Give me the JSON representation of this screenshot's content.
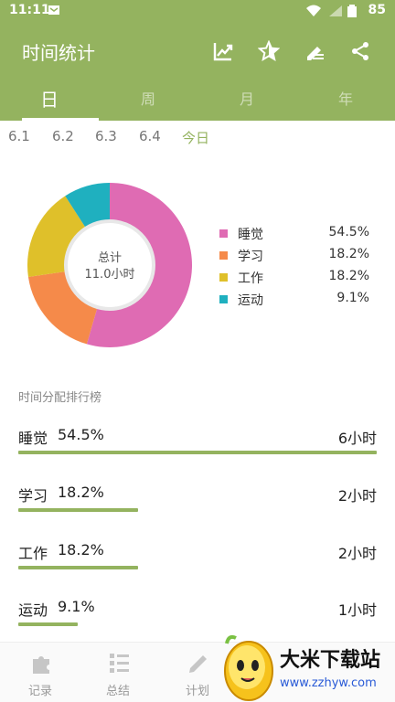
{
  "status_bar": {
    "time": "11:11",
    "battery": "85"
  },
  "app_bar": {
    "title": "时间统计",
    "actions": [
      "chart-line-icon",
      "star-icon",
      "edit-list-icon",
      "share-icon"
    ]
  },
  "tabs": [
    {
      "label": "日",
      "active": true
    },
    {
      "label": "周",
      "active": false
    },
    {
      "label": "月",
      "active": false
    },
    {
      "label": "年",
      "active": false
    }
  ],
  "dates": [
    {
      "label": "6.1",
      "active": false
    },
    {
      "label": "6.2",
      "active": false
    },
    {
      "label": "6.3",
      "active": false
    },
    {
      "label": "6.4",
      "active": false
    },
    {
      "label": "今日",
      "active": true
    }
  ],
  "chart_data": {
    "type": "pie",
    "title": "",
    "center_label": "总计",
    "center_value": "11.0小时",
    "series": [
      {
        "name": "睡觉",
        "value": 54.5,
        "value_text": "54.5%",
        "color": "#df6bb3"
      },
      {
        "name": "学习",
        "value": 18.2,
        "value_text": "18.2%",
        "color": "#f58a4a"
      },
      {
        "name": "工作",
        "value": 18.2,
        "value_text": "18.2%",
        "color": "#dfc02a"
      },
      {
        "name": "运动",
        "value": 9.1,
        "value_text": "9.1%",
        "color": "#1fb0bf"
      }
    ],
    "legend_placement": "right"
  },
  "ranking": {
    "title": "时间分配排行榜",
    "rows": [
      {
        "name": "睡觉",
        "percent": "54.5%",
        "time": "6小时",
        "fraction": 1.0
      },
      {
        "name": "学习",
        "percent": "18.2%",
        "time": "2小时",
        "fraction": 0.333
      },
      {
        "name": "工作",
        "percent": "18.2%",
        "time": "2小时",
        "fraction": 0.333
      },
      {
        "name": "运动",
        "percent": "9.1%",
        "time": "1小时",
        "fraction": 0.167
      }
    ]
  },
  "bottom_nav": [
    {
      "label": "记录",
      "icon": "puzzle-icon"
    },
    {
      "label": "总结",
      "icon": "list-tree-icon"
    },
    {
      "label": "计划",
      "icon": "pencil-icon"
    }
  ],
  "watermark": {
    "title": "大米下载站",
    "url": "www.zzhyw.com"
  },
  "colors": {
    "accent": "#94b35f"
  }
}
